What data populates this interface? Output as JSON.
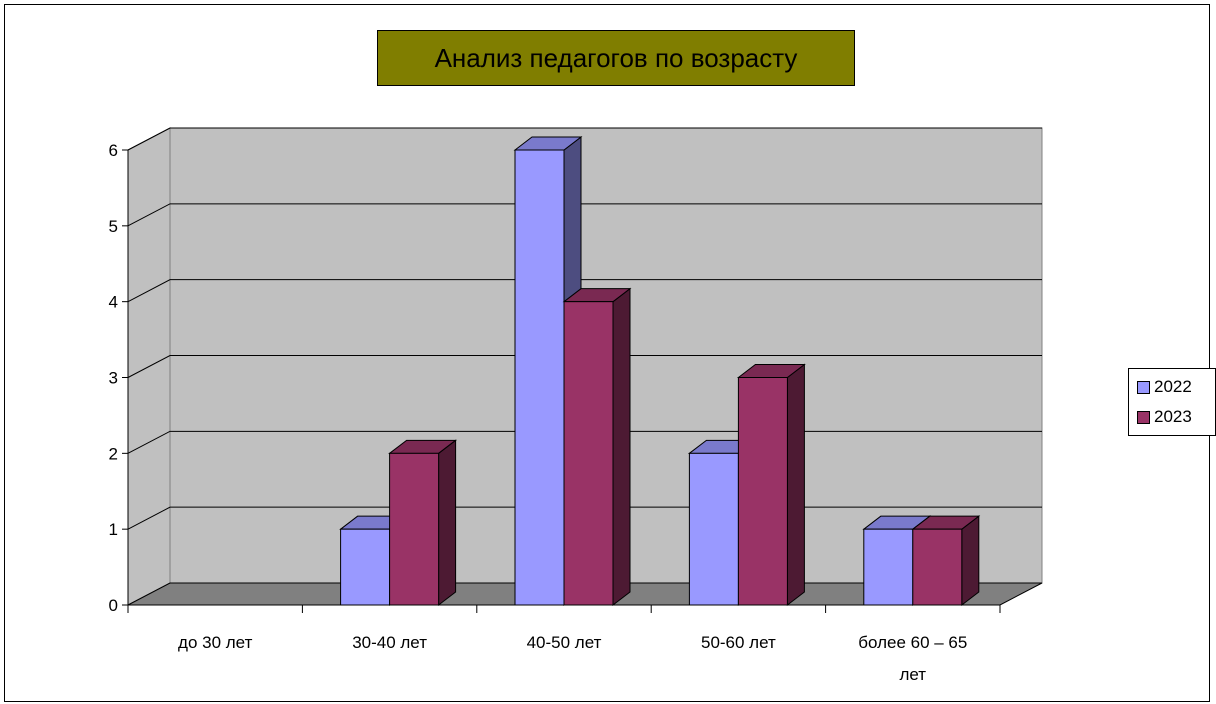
{
  "chart_data": {
    "type": "bar",
    "title": "Анализ педагогов по возрасту",
    "categories": [
      "до 30 лет",
      "30-40 лет",
      "40-50 лет",
      "50-60 лет",
      "более 60 – 65 лет"
    ],
    "category_lines": [
      [
        "до 30 лет"
      ],
      [
        "30-40 лет"
      ],
      [
        "40-50 лет"
      ],
      [
        "50-60 лет"
      ],
      [
        "более 60 – 65",
        "лет"
      ]
    ],
    "series": [
      {
        "name": "2022",
        "values": [
          0,
          1,
          6,
          2,
          1
        ],
        "color": "#9999ff"
      },
      {
        "name": "2023",
        "values": [
          0,
          2,
          4,
          3,
          1
        ],
        "color": "#993366"
      }
    ],
    "ylim": [
      0,
      6
    ],
    "yticks": [
      0,
      1,
      2,
      3,
      4,
      5,
      6
    ],
    "grid": true,
    "style": "3d-clustered-column",
    "legend_position": "right",
    "wall_color": "#c0c0c0",
    "floor_color": "#808080"
  }
}
